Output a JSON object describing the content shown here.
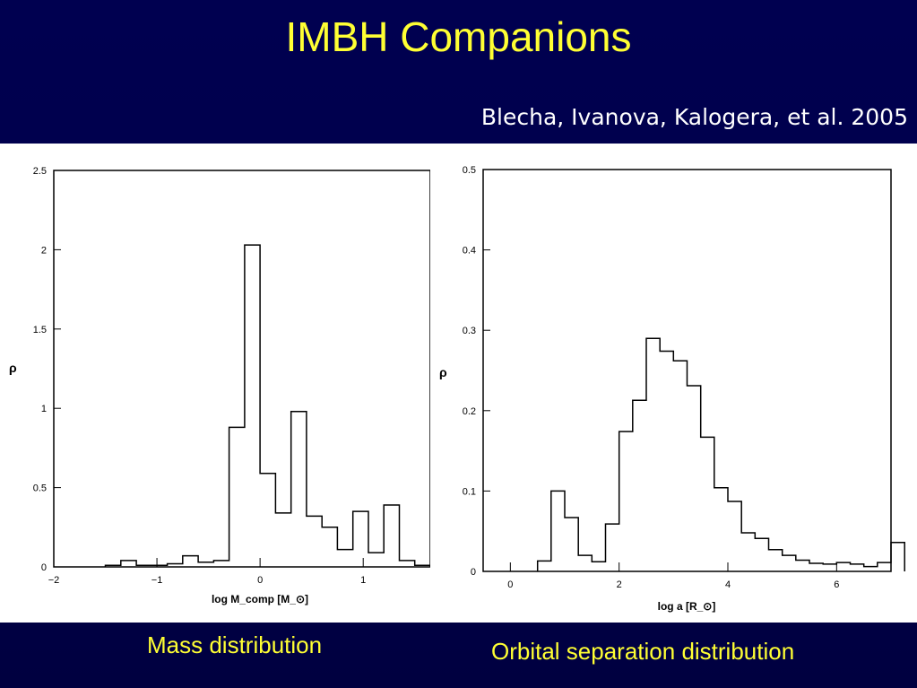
{
  "slide": {
    "title": "IMBH Companions",
    "citation": "Blecha, Ivanova, Kalogera, et al. 2005",
    "caption_left": "Mass distribution",
    "caption_right": "Orbital separation distribution",
    "colors": {
      "background": "#000050",
      "title": "#ffff33",
      "citation": "#ffffff",
      "panel": "#ffffff"
    }
  },
  "chart_data": [
    {
      "type": "bar",
      "histogram": true,
      "xlabel": "log M_comp [M_⊙]",
      "ylabel": "ρ",
      "xlim": [
        -2,
        1.65
      ],
      "ylim": [
        0,
        2.5
      ],
      "xticks": [
        -2,
        -1,
        0,
        1
      ],
      "yticks": [
        0,
        0.5,
        1,
        1.5,
        2,
        2.5
      ],
      "grid": false,
      "bin_width": 0.15,
      "bin_edges_start": -1.5,
      "values": [
        0.01,
        0.04,
        0.01,
        0.01,
        0.02,
        0.07,
        0.03,
        0.04,
        0.88,
        2.03,
        0.59,
        0.34,
        0.98,
        0.32,
        0.25,
        0.11,
        0.35,
        0.09,
        0.39,
        0.04,
        0.01
      ]
    },
    {
      "type": "bar",
      "histogram": true,
      "xlabel": "log a [R_⊙]",
      "ylabel": "ρ",
      "xlim": [
        -0.5,
        7
      ],
      "ylim": [
        0,
        0.5
      ],
      "xticks": [
        0,
        2,
        4,
        6
      ],
      "yticks": [
        0,
        0.1,
        0.2,
        0.3,
        0.4,
        0.5
      ],
      "grid": false,
      "bin_width": 0.25,
      "bin_edges_start": 0.5,
      "values": [
        0.013,
        0.1,
        0.067,
        0.02,
        0.012,
        0.059,
        0.174,
        0.213,
        0.29,
        0.274,
        0.262,
        0.231,
        0.167,
        0.104,
        0.087,
        0.048,
        0.041,
        0.027,
        0.02,
        0.014,
        0.01,
        0.009,
        0.011,
        0.009,
        0.006,
        0.011,
        0.036
      ]
    }
  ]
}
